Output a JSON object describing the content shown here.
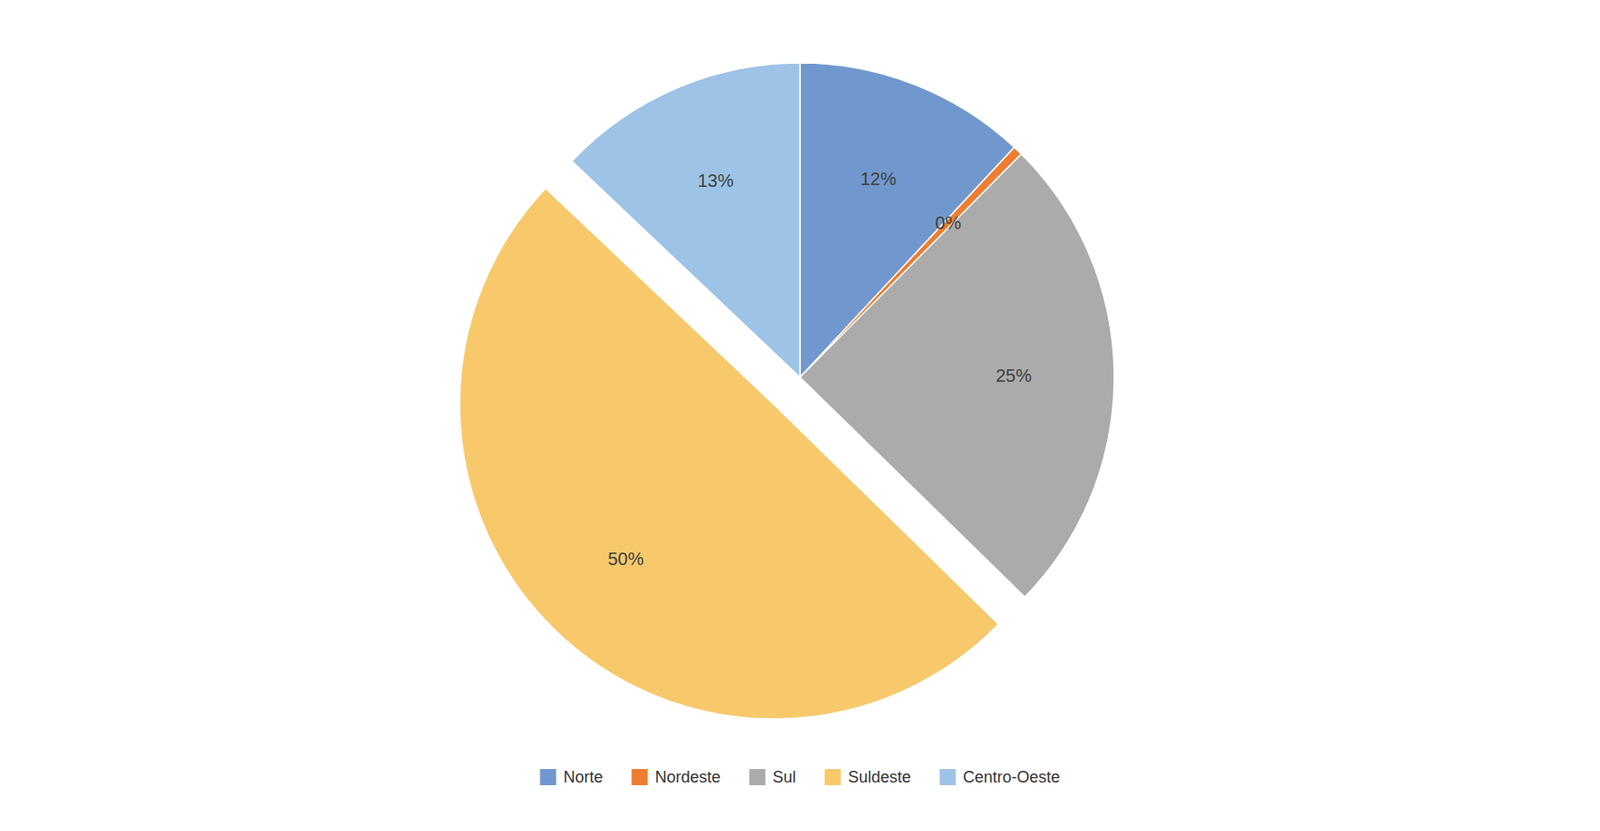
{
  "chart_data": {
    "type": "pie",
    "categories": [
      "Norte",
      "Nordeste",
      "Sul",
      "Suldeste",
      "Centro-Oeste"
    ],
    "values": [
      12,
      0.5,
      25,
      50,
      13
    ],
    "value_labels": [
      "12%",
      "0%",
      "25%",
      "50%",
      "13%"
    ],
    "colors": [
      "#7198CE",
      "#ED7D31",
      "#ABABAB",
      "#F7C96B",
      "#9DC3E6"
    ],
    "data_labels": true,
    "legend": "bottom"
  }
}
